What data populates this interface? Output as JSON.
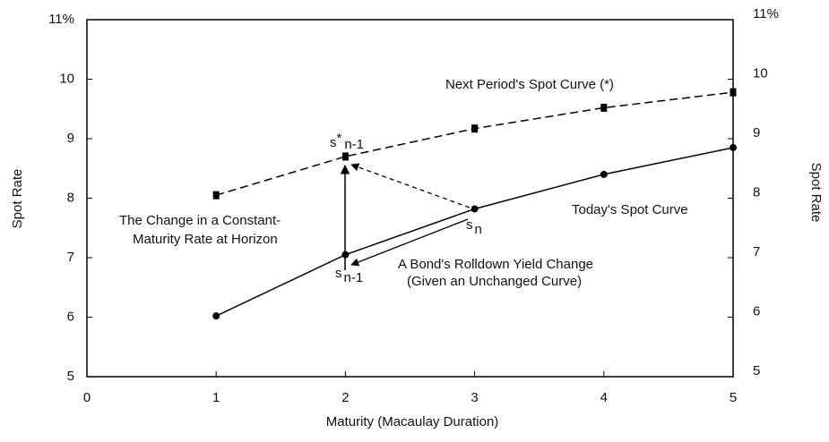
{
  "chart_data": {
    "type": "line",
    "x_label": "Maturity (Macaulay Duration)",
    "y_label": "Spot Rate",
    "y2_label": "Spot Rate",
    "x": [
      1,
      2,
      3,
      4,
      5
    ],
    "series": [
      {
        "name": "Today's Spot Curve",
        "color": "#000000",
        "dash": false,
        "marker": "circle",
        "values": [
          6.02,
          7.05,
          7.82,
          8.4,
          8.85
        ]
      },
      {
        "name": "Next Period's Spot Curve (*)",
        "color": "#000000",
        "dash": true,
        "marker": "square",
        "values": [
          8.05,
          8.7,
          9.17,
          9.52,
          9.78
        ]
      }
    ],
    "xlim": [
      0,
      5
    ],
    "xticks": [
      0,
      1,
      2,
      3,
      4,
      5
    ],
    "ylim": [
      5,
      11
    ],
    "yticks": [
      5,
      6,
      7,
      8,
      9,
      10,
      {
        "value": 11,
        "label": "11%"
      }
    ],
    "y2lim": [
      5,
      11
    ],
    "y2ticks": [
      5,
      6,
      7,
      8,
      9,
      10,
      {
        "value": 11,
        "label": "11%"
      }
    ],
    "grid": false,
    "annotations": {
      "constant_maturity": [
        "The Change in a Constant-",
        "Maturity Rate at Horizon"
      ],
      "rolldown": [
        "A Bond's Rolldown Yield Change",
        "(Given an Unchanged Curve)"
      ],
      "s_star": {
        "base": "s",
        "sup": "*",
        "sub": "n-1"
      },
      "s_n": {
        "base": "s",
        "sub": "n"
      },
      "s_n1": {
        "base": "s",
        "sub": "n-1"
      }
    }
  }
}
